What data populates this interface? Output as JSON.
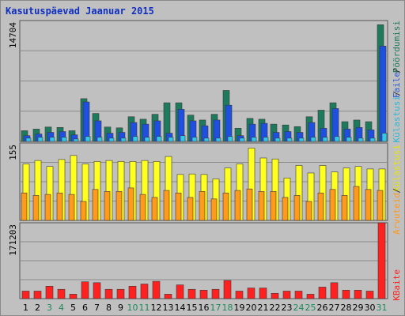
{
  "title": "Kasutuspäevad Jaanuar 2015",
  "colors": {
    "visits": "#1e7a5c",
    "pages": "#1f4fe0",
    "hits": "#33c8e8",
    "files_label": "#2a58d8",
    "visits_label": "#1e7a5c",
    "hits_label": "#28b8d8",
    "pages_label": "#1f4fe0",
    "traffic": "#ff2020",
    "hosts": "#ffff20",
    "hosts_label": "#e6e600",
    "volume": "#ff9a1a",
    "weekend_label": "#1f8a5c",
    "weekday_label": "#000000"
  },
  "right_labels": {
    "top": [
      "Pöördumisi",
      "Faile",
      "Külastusi"
    ],
    "middle": [
      "Külastusi",
      "Arvuteid"
    ],
    "bottom": [
      "KBaite"
    ]
  },
  "chart_data": [
    {
      "type": "bar",
      "name": "top",
      "ylim": [
        0,
        14704
      ],
      "ytick_label": "14704",
      "categories": [
        "1",
        "2",
        "3",
        "4",
        "5",
        "6",
        "7",
        "8",
        "9",
        "10",
        "11",
        "12",
        "13",
        "14",
        "15",
        "16",
        "17",
        "18",
        "19",
        "20",
        "21",
        "22",
        "23",
        "24",
        "25",
        "26",
        "27",
        "28",
        "29",
        "30",
        "31"
      ],
      "weekend": [
        false,
        false,
        true,
        true,
        false,
        false,
        false,
        false,
        false,
        true,
        true,
        false,
        false,
        false,
        false,
        false,
        true,
        true,
        false,
        false,
        false,
        false,
        false,
        true,
        true,
        false,
        false,
        false,
        false,
        false,
        true
      ],
      "series": [
        {
          "key": "visits",
          "values": [
            1300,
            1500,
            1750,
            1700,
            1300,
            5200,
            3400,
            1750,
            1650,
            3000,
            2700,
            3300,
            4700,
            4700,
            3200,
            2600,
            3300,
            6200,
            1600,
            2800,
            2700,
            2100,
            2000,
            1800,
            3000,
            3800,
            4700,
            2400,
            2600,
            2400,
            14200
          ]
        },
        {
          "key": "pages",
          "values": [
            700,
            900,
            1100,
            1200,
            800,
            4800,
            2500,
            1000,
            1100,
            2300,
            2100,
            2500,
            1000,
            3900,
            2500,
            1900,
            2600,
            4400,
            700,
            2100,
            2200,
            1100,
            1200,
            1100,
            2300,
            1600,
            4000,
            1500,
            1700,
            1400,
            11600
          ]
        },
        {
          "key": "hits",
          "values": [
            400,
            500,
            500,
            500,
            300,
            600,
            500,
            400,
            400,
            600,
            500,
            600,
            500,
            700,
            500,
            400,
            400,
            600,
            400,
            500,
            500,
            400,
            400,
            400,
            500,
            500,
            600,
            500,
            400,
            400,
            1000
          ]
        }
      ]
    },
    {
      "type": "bar",
      "name": "middle",
      "ylim": [
        0,
        155
      ],
      "ytick_label": "155",
      "categories": [
        "1",
        "2",
        "3",
        "4",
        "5",
        "6",
        "7",
        "8",
        "9",
        "10",
        "11",
        "12",
        "13",
        "14",
        "15",
        "16",
        "17",
        "18",
        "19",
        "20",
        "21",
        "22",
        "23",
        "24",
        "25",
        "26",
        "27",
        "28",
        "29",
        "30",
        "31"
      ],
      "series": [
        {
          "key": "hosts",
          "values": [
            113,
            120,
            108,
            122,
            130,
            113,
            118,
            120,
            118,
            118,
            120,
            118,
            128,
            92,
            93,
            92,
            83,
            105,
            113,
            145,
            125,
            123,
            85,
            110,
            95,
            110,
            97,
            105,
            108,
            103,
            103
          ]
        },
        {
          "key": "volume",
          "values": [
            55,
            50,
            52,
            55,
            52,
            38,
            62,
            58,
            58,
            65,
            52,
            46,
            60,
            55,
            46,
            58,
            43,
            55,
            60,
            63,
            58,
            58,
            46,
            50,
            38,
            55,
            62,
            50,
            68,
            62,
            60
          ]
        }
      ]
    },
    {
      "type": "bar",
      "name": "bottom",
      "ylim": [
        0,
        171203
      ],
      "ytick_label": "171203",
      "categories": [
        "1",
        "2",
        "3",
        "4",
        "5",
        "6",
        "7",
        "8",
        "9",
        "10",
        "11",
        "12",
        "13",
        "14",
        "15",
        "16",
        "17",
        "18",
        "19",
        "20",
        "21",
        "22",
        "23",
        "24",
        "25",
        "26",
        "27",
        "28",
        "29",
        "30",
        "31"
      ],
      "series": [
        {
          "key": "traffic",
          "values": [
            17000,
            17000,
            28000,
            21000,
            10000,
            38000,
            36000,
            21000,
            21000,
            28000,
            33000,
            39000,
            10000,
            31000,
            21000,
            19000,
            21000,
            41000,
            17000,
            24000,
            24000,
            12000,
            17000,
            17000,
            10000,
            26000,
            36000,
            19000,
            19000,
            17000,
            171203
          ]
        }
      ]
    }
  ]
}
